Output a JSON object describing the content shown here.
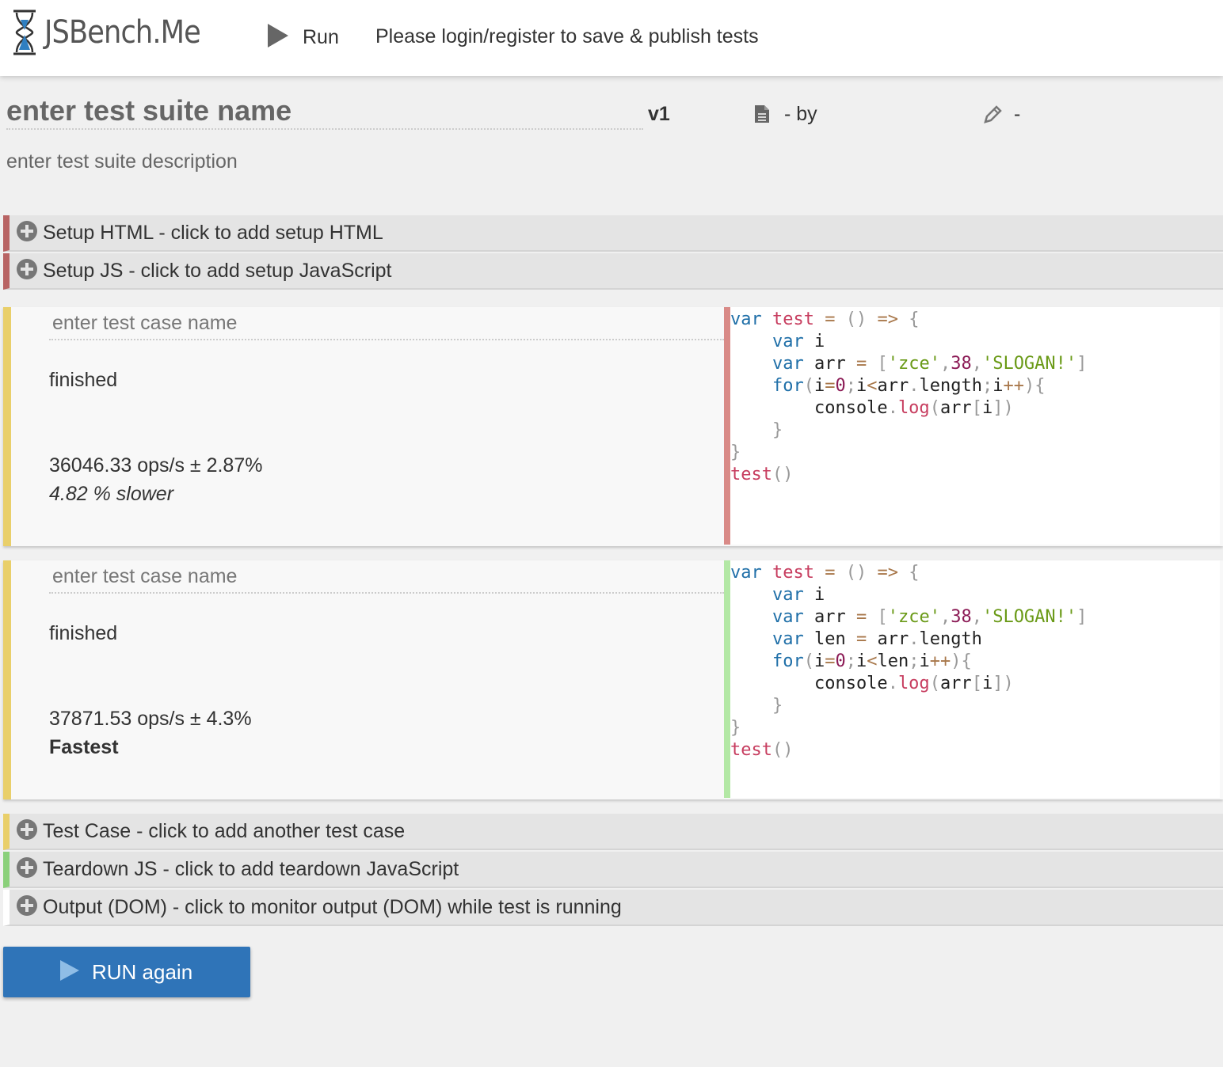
{
  "header": {
    "logo_text": "JSBench.Me",
    "run_label": "Run",
    "login_message": "Please login/register to save & publish tests"
  },
  "suite": {
    "name": "enter test suite name",
    "version": "v1",
    "by": "- by",
    "edit_dash": "-",
    "description": "enter test suite description"
  },
  "sections": {
    "setup_html": "Setup HTML - click to add setup HTML",
    "setup_js": "Setup JS - click to add setup JavaScript",
    "test_case": "Test Case - click to add another test case",
    "teardown_js": "Teardown JS - click to add teardown JavaScript",
    "output_dom": "Output (DOM) - click to monitor output (DOM) while test is running"
  },
  "cases": [
    {
      "name_placeholder": "enter test case name",
      "status": "finished",
      "ops": "36046.33 ops/s ± 2.87%",
      "relative": "4.82 % slower",
      "code_lines": [
        "var test = () => {",
        "    var i",
        "    var arr = ['zce',38,'SLOGAN!']",
        "    for(i=0;i<arr.length;i++){",
        "        console.log(arr[i])",
        "    }",
        "}",
        "test()"
      ]
    },
    {
      "name_placeholder": "enter test case name",
      "status": "finished",
      "ops": "37871.53 ops/s ± 4.3%",
      "relative": "Fastest",
      "code_lines": [
        "var test = () => {",
        "    var i",
        "    var arr = ['zce',38,'SLOGAN!']",
        "    var len = arr.length",
        "    for(i=0;i<len;i++){",
        "        console.log(arr[i])",
        "    }",
        "}",
        "test()"
      ]
    }
  ],
  "run_again_label": "RUN again",
  "colors": {
    "accent_blue": "#2f74b8",
    "setup_border": "#b86464",
    "case_border": "#e9cf6a",
    "teardown_border": "#8ad07a"
  }
}
